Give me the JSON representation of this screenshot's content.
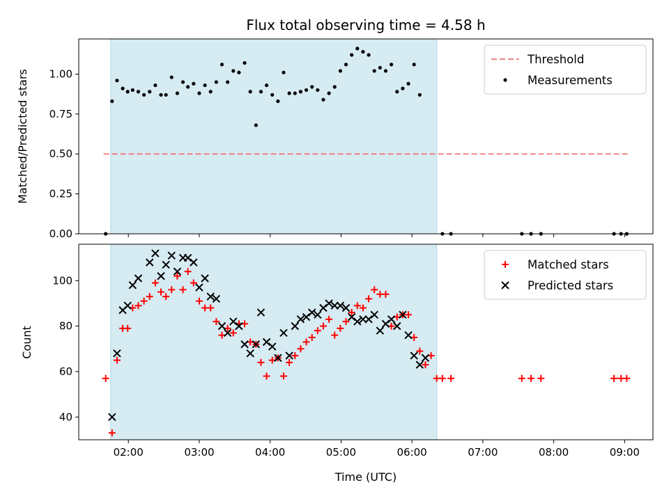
{
  "chart_data": [
    {
      "type": "scatter",
      "title": "Flux total observing time = 4.58 h",
      "xlabel": "",
      "ylabel": "Matched/Predicted stars",
      "ylim": [
        0,
        1.22
      ],
      "yticks": [
        0.0,
        0.25,
        0.5,
        0.75,
        1.0
      ],
      "ytick_labels": [
        "0.00",
        "0.25",
        "0.50",
        "0.75",
        "1.00"
      ],
      "xlim_hours": [
        1.3,
        9.4
      ],
      "xticks_hours": [
        2,
        3,
        4,
        5,
        6,
        7,
        8,
        9
      ],
      "xtick_labels": [],
      "shaded_span_hours": [
        1.75,
        6.35
      ],
      "shaded_color": "#add8e6",
      "threshold": {
        "label": "Threshold",
        "y": 0.5,
        "x_range_hours": [
          1.65,
          9.05
        ],
        "color": "#f08080"
      },
      "legend_position": "upper right",
      "series": [
        {
          "name": "Measurements",
          "color": "#000000",
          "marker": "dot",
          "points": [
            [
              1.68,
              0.0
            ],
            [
              1.77,
              0.83
            ],
            [
              1.84,
              0.96
            ],
            [
              1.92,
              0.91
            ],
            [
              1.99,
              0.89
            ],
            [
              2.06,
              0.9
            ],
            [
              2.14,
              0.89
            ],
            [
              2.22,
              0.87
            ],
            [
              2.3,
              0.89
            ],
            [
              2.38,
              0.93
            ],
            [
              2.46,
              0.87
            ],
            [
              2.53,
              0.87
            ],
            [
              2.61,
              0.98
            ],
            [
              2.69,
              0.88
            ],
            [
              2.77,
              0.95
            ],
            [
              2.84,
              0.92
            ],
            [
              2.92,
              0.94
            ],
            [
              3.0,
              0.88
            ],
            [
              3.08,
              0.93
            ],
            [
              3.16,
              0.89
            ],
            [
              3.24,
              0.95
            ],
            [
              3.32,
              1.06
            ],
            [
              3.4,
              0.95
            ],
            [
              3.48,
              1.02
            ],
            [
              3.56,
              1.01
            ],
            [
              3.64,
              1.07
            ],
            [
              3.72,
              0.89
            ],
            [
              3.8,
              0.68
            ],
            [
              3.87,
              0.89
            ],
            [
              3.95,
              0.93
            ],
            [
              4.03,
              0.87
            ],
            [
              4.11,
              0.83
            ],
            [
              4.19,
              1.01
            ],
            [
              4.27,
              0.88
            ],
            [
              4.35,
              0.88
            ],
            [
              4.43,
              0.89
            ],
            [
              4.51,
              0.9
            ],
            [
              4.59,
              0.92
            ],
            [
              4.67,
              0.9
            ],
            [
              4.75,
              0.84
            ],
            [
              4.83,
              0.88
            ],
            [
              4.91,
              0.92
            ],
            [
              4.99,
              1.02
            ],
            [
              5.07,
              1.06
            ],
            [
              5.15,
              1.12
            ],
            [
              5.23,
              1.16
            ],
            [
              5.31,
              1.14
            ],
            [
              5.39,
              1.12
            ],
            [
              5.47,
              1.02
            ],
            [
              5.55,
              1.04
            ],
            [
              5.63,
              1.02
            ],
            [
              5.71,
              1.06
            ],
            [
              5.79,
              0.89
            ],
            [
              5.87,
              0.91
            ],
            [
              5.95,
              0.94
            ],
            [
              6.03,
              1.06
            ],
            [
              6.11,
              0.87
            ],
            [
              6.43,
              0.0
            ],
            [
              6.55,
              0.0
            ],
            [
              7.55,
              0.0
            ],
            [
              7.68,
              0.0
            ],
            [
              7.82,
              0.0
            ],
            [
              8.85,
              0.0
            ],
            [
              8.95,
              0.0
            ],
            [
              9.03,
              0.0
            ]
          ]
        }
      ]
    },
    {
      "type": "scatter",
      "title": "",
      "xlabel": "Time (UTC)",
      "ylabel": "Count",
      "ylim": [
        30,
        116
      ],
      "yticks": [
        40,
        60,
        80,
        100
      ],
      "ytick_labels": [
        "40",
        "60",
        "80",
        "100"
      ],
      "xlim_hours": [
        1.3,
        9.4
      ],
      "xticks_hours": [
        2,
        3,
        4,
        5,
        6,
        7,
        8,
        9
      ],
      "xtick_labels": [
        "02:00",
        "03:00",
        "04:00",
        "05:00",
        "06:00",
        "07:00",
        "08:00",
        "09:00"
      ],
      "shaded_span_hours": [
        1.75,
        6.35
      ],
      "shaded_color": "#add8e6",
      "legend_position": "upper right",
      "series": [
        {
          "name": "Matched stars",
          "color": "#ff0000",
          "marker": "plus",
          "points": [
            [
              1.68,
              57
            ],
            [
              1.77,
              33
            ],
            [
              1.84,
              65
            ],
            [
              1.92,
              79
            ],
            [
              1.99,
              79
            ],
            [
              2.06,
              88
            ],
            [
              2.14,
              89
            ],
            [
              2.22,
              91
            ],
            [
              2.3,
              93
            ],
            [
              2.38,
              99
            ],
            [
              2.46,
              95
            ],
            [
              2.53,
              93
            ],
            [
              2.61,
              96
            ],
            [
              2.69,
              102
            ],
            [
              2.77,
              96
            ],
            [
              2.84,
              104
            ],
            [
              2.92,
              99
            ],
            [
              3.0,
              91
            ],
            [
              3.08,
              88
            ],
            [
              3.16,
              88
            ],
            [
              3.24,
              82
            ],
            [
              3.32,
              76
            ],
            [
              3.4,
              79
            ],
            [
              3.48,
              77
            ],
            [
              3.56,
              81
            ],
            [
              3.64,
              81
            ],
            [
              3.72,
              73
            ],
            [
              3.8,
              72
            ],
            [
              3.87,
              64
            ],
            [
              3.95,
              58
            ],
            [
              4.03,
              65
            ],
            [
              4.11,
              66
            ],
            [
              4.19,
              58
            ],
            [
              4.27,
              64
            ],
            [
              4.35,
              67
            ],
            [
              4.43,
              70
            ],
            [
              4.51,
              73
            ],
            [
              4.59,
              75
            ],
            [
              4.67,
              78
            ],
            [
              4.75,
              80
            ],
            [
              4.83,
              83
            ],
            [
              4.91,
              76
            ],
            [
              4.99,
              79
            ],
            [
              5.07,
              82
            ],
            [
              5.15,
              86
            ],
            [
              5.23,
              89
            ],
            [
              5.31,
              88
            ],
            [
              5.39,
              92
            ],
            [
              5.47,
              96
            ],
            [
              5.55,
              94
            ],
            [
              5.63,
              94
            ],
            [
              5.71,
              80
            ],
            [
              5.79,
              84
            ],
            [
              5.87,
              85
            ],
            [
              5.95,
              85
            ],
            [
              6.03,
              75
            ],
            [
              6.11,
              69
            ],
            [
              6.19,
              63
            ],
            [
              6.27,
              67
            ],
            [
              6.35,
              57
            ],
            [
              6.43,
              57
            ],
            [
              6.55,
              57
            ],
            [
              7.55,
              57
            ],
            [
              7.68,
              57
            ],
            [
              7.82,
              57
            ],
            [
              8.85,
              57
            ],
            [
              8.95,
              57
            ],
            [
              9.03,
              57
            ]
          ]
        },
        {
          "name": "Predicted stars",
          "color": "#000000",
          "marker": "x",
          "points": [
            [
              1.77,
              40
            ],
            [
              1.84,
              68
            ],
            [
              1.92,
              87
            ],
            [
              1.99,
              89
            ],
            [
              2.06,
              98
            ],
            [
              2.14,
              101
            ],
            [
              2.3,
              108
            ],
            [
              2.38,
              112
            ],
            [
              2.46,
              102
            ],
            [
              2.53,
              107
            ],
            [
              2.61,
              111
            ],
            [
              2.69,
              104
            ],
            [
              2.77,
              110
            ],
            [
              2.84,
              110
            ],
            [
              2.92,
              108
            ],
            [
              3.0,
              97
            ],
            [
              3.08,
              101
            ],
            [
              3.16,
              93
            ],
            [
              3.24,
              92
            ],
            [
              3.32,
              80
            ],
            [
              3.4,
              77
            ],
            [
              3.48,
              82
            ],
            [
              3.56,
              80
            ],
            [
              3.64,
              72
            ],
            [
              3.72,
              68
            ],
            [
              3.8,
              72
            ],
            [
              3.87,
              86
            ],
            [
              3.95,
              73
            ],
            [
              4.03,
              71
            ],
            [
              4.11,
              66
            ],
            [
              4.19,
              77
            ],
            [
              4.27,
              67
            ],
            [
              4.35,
              80
            ],
            [
              4.43,
              83
            ],
            [
              4.51,
              84
            ],
            [
              4.59,
              86
            ],
            [
              4.67,
              85
            ],
            [
              4.75,
              88
            ],
            [
              4.83,
              90
            ],
            [
              4.91,
              89
            ],
            [
              4.99,
              89
            ],
            [
              5.07,
              88
            ],
            [
              5.15,
              84
            ],
            [
              5.23,
              82
            ],
            [
              5.31,
              83
            ],
            [
              5.39,
              83
            ],
            [
              5.47,
              85
            ],
            [
              5.55,
              78
            ],
            [
              5.63,
              81
            ],
            [
              5.71,
              83
            ],
            [
              5.79,
              80
            ],
            [
              5.87,
              85
            ],
            [
              5.95,
              76
            ],
            [
              6.03,
              67
            ],
            [
              6.11,
              63
            ],
            [
              6.19,
              66
            ]
          ]
        }
      ]
    }
  ]
}
